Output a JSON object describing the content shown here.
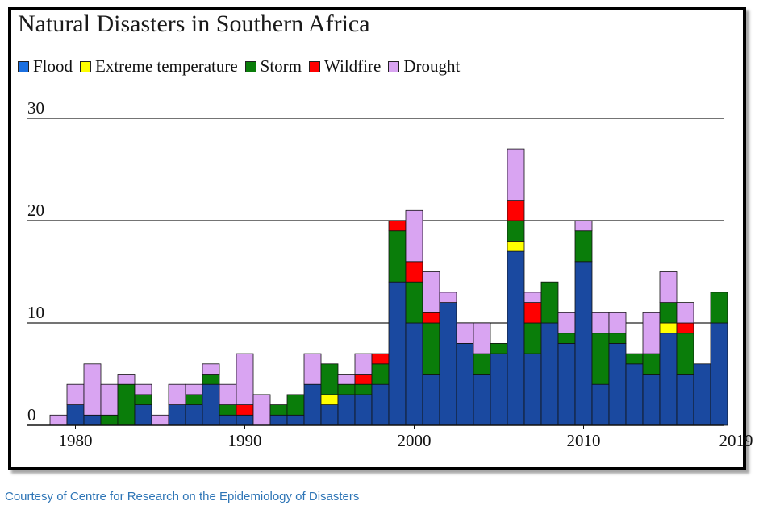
{
  "chart_data": {
    "type": "bar",
    "stacked": true,
    "title": "Natural Disasters in Southern Africa",
    "xlabel": "",
    "ylabel": "",
    "ylim": [
      0,
      30
    ],
    "y_ticks": [
      "0",
      "10",
      "20",
      "30"
    ],
    "x_tick_labels": [
      "1980",
      "1990",
      "2000",
      "2010",
      "2019"
    ],
    "grid": "horizontal",
    "legend_position": "top",
    "categories": [
      1979,
      1980,
      1981,
      1982,
      1983,
      1984,
      1985,
      1986,
      1987,
      1988,
      1989,
      1990,
      1991,
      1992,
      1993,
      1994,
      1995,
      1996,
      1997,
      1998,
      1999,
      2000,
      2001,
      2002,
      2003,
      2004,
      2005,
      2006,
      2007,
      2008,
      2009,
      2010,
      2011,
      2012,
      2013,
      2014,
      2015,
      2016,
      2017,
      2018,
      2019
    ],
    "series": [
      {
        "name": "Flood",
        "color": "#1a49a0",
        "values": [
          0,
          2,
          1,
          0,
          0,
          2,
          0,
          2,
          2,
          4,
          1,
          1,
          0,
          1,
          1,
          4,
          2,
          3,
          3,
          4,
          14,
          10,
          5,
          12,
          8,
          5,
          7,
          17,
          7,
          10,
          8,
          16,
          4,
          8,
          6,
          5,
          9,
          5,
          6,
          10,
          0
        ]
      },
      {
        "name": "Extreme temperature",
        "color": "#ffff00",
        "values": [
          0,
          0,
          0,
          0,
          0,
          0,
          0,
          0,
          0,
          0,
          0,
          0,
          0,
          0,
          0,
          0,
          1,
          0,
          0,
          0,
          0,
          0,
          0,
          0,
          0,
          0,
          0,
          1,
          0,
          0,
          0,
          0,
          0,
          0,
          0,
          0,
          1,
          0,
          0,
          0,
          0
        ]
      },
      {
        "name": "Storm",
        "color": "#0a7d0a",
        "values": [
          0,
          0,
          0,
          1,
          4,
          1,
          0,
          0,
          1,
          1,
          1,
          0,
          0,
          1,
          2,
          0,
          3,
          1,
          1,
          2,
          5,
          4,
          5,
          0,
          0,
          2,
          1,
          2,
          3,
          4,
          1,
          3,
          5,
          1,
          1,
          2,
          2,
          4,
          0,
          3,
          0
        ]
      },
      {
        "name": "Wildfire",
        "color": "#ff0000",
        "values": [
          0,
          0,
          0,
          0,
          0,
          0,
          0,
          0,
          0,
          0,
          0,
          1,
          0,
          0,
          0,
          0,
          0,
          0,
          1,
          1,
          1,
          2,
          1,
          0,
          0,
          0,
          0,
          2,
          2,
          0,
          0,
          0,
          0,
          0,
          0,
          0,
          0,
          1,
          0,
          0,
          0
        ]
      },
      {
        "name": "Drought",
        "color": "#d9a4f2",
        "values": [
          1,
          2,
          5,
          3,
          1,
          1,
          1,
          2,
          1,
          1,
          2,
          5,
          3,
          0,
          0,
          3,
          0,
          1,
          2,
          0,
          0,
          5,
          4,
          1,
          2,
          3,
          0,
          5,
          1,
          0,
          2,
          1,
          2,
          2,
          0,
          4,
          3,
          2,
          0,
          0,
          0
        ]
      }
    ]
  },
  "credit": "Courtesy of Centre for Research on the Epidemiology of Disasters"
}
